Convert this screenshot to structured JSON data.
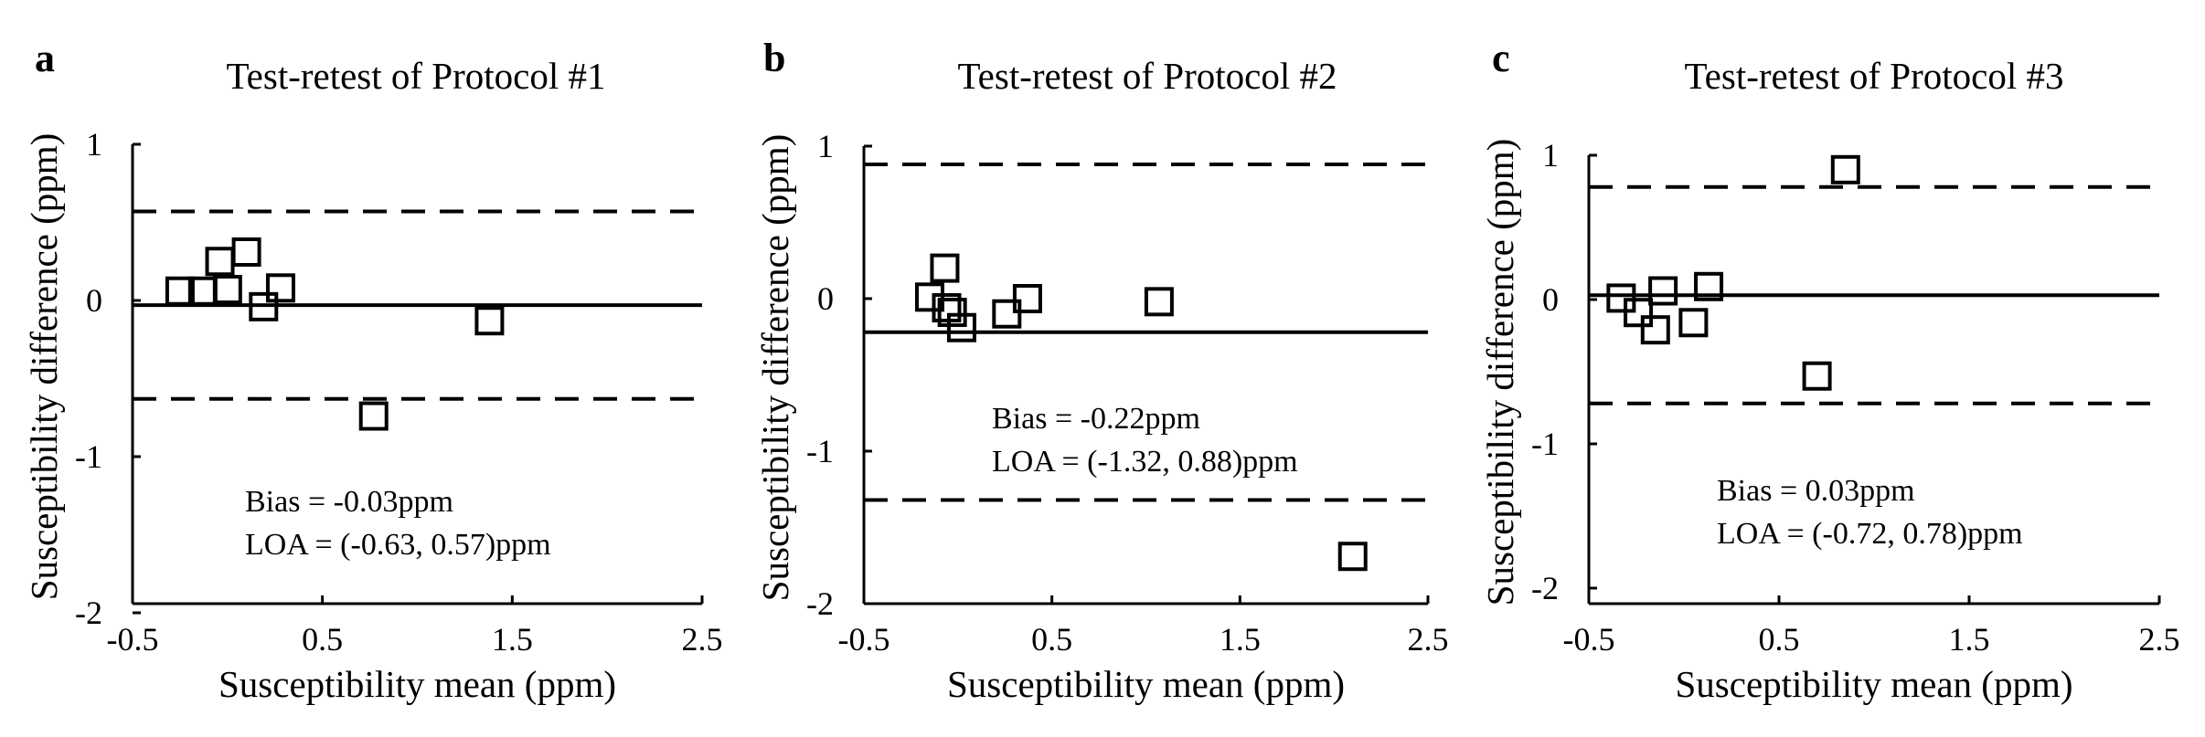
{
  "chart_data": [
    {
      "panel": "a",
      "type": "scatter",
      "title": "Test-retest of Protocol #1",
      "xlabel": "Susceptibility mean (ppm)",
      "ylabel": "Susceptibility difference (ppm)",
      "xlim": [
        -0.5,
        2.5
      ],
      "ylim": [
        -2,
        1
      ],
      "xticks": [
        -0.5,
        0.5,
        1.5,
        2.5
      ],
      "xtick_labels": [
        "-0.5",
        "0.5",
        "1.5",
        "2.5"
      ],
      "yticks": [
        -2,
        -1,
        0,
        1
      ],
      "ytick_labels": [
        "-2",
        "-1",
        "0",
        "1"
      ],
      "points": [
        {
          "x": -0.25,
          "y": 0.06
        },
        {
          "x": -0.13,
          "y": 0.06
        },
        {
          "x": -0.04,
          "y": 0.25
        },
        {
          "x": 0.0,
          "y": 0.07
        },
        {
          "x": 0.1,
          "y": 0.31
        },
        {
          "x": 0.19,
          "y": -0.04
        },
        {
          "x": 0.28,
          "y": 0.08
        },
        {
          "x": 0.77,
          "y": -0.74
        },
        {
          "x": 1.38,
          "y": -0.13
        }
      ],
      "bias": -0.03,
      "loa": [
        -0.63,
        0.57
      ],
      "annotation": {
        "bias_text": "Bias = -0.03ppm",
        "loa_text": "LOA = (-0.63, 0.57)ppm"
      }
    },
    {
      "panel": "b",
      "type": "scatter",
      "title": "Test-retest of Protocol #2",
      "xlabel": "Susceptibility mean (ppm)",
      "ylabel": "Susceptibility difference (ppm)",
      "xlim": [
        -0.5,
        2.5
      ],
      "ylim": [
        -2,
        1
      ],
      "xticks": [
        -0.5,
        0.5,
        1.5,
        2.5
      ],
      "xtick_labels": [
        "-0.5",
        "0.5",
        "1.5",
        "2.5"
      ],
      "yticks": [
        -2,
        -1,
        0,
        1
      ],
      "ytick_labels": [
        "-2",
        "-1",
        "0",
        "1"
      ],
      "points": [
        {
          "x": -0.15,
          "y": 0.01
        },
        {
          "x": -0.07,
          "y": 0.2
        },
        {
          "x": -0.06,
          "y": -0.06
        },
        {
          "x": -0.03,
          "y": -0.09
        },
        {
          "x": 0.02,
          "y": -0.19
        },
        {
          "x": 0.26,
          "y": -0.1
        },
        {
          "x": 0.37,
          "y": 0.0
        },
        {
          "x": 1.07,
          "y": -0.02
        },
        {
          "x": 2.1,
          "y": -1.69
        }
      ],
      "bias": -0.22,
      "loa": [
        -1.32,
        0.88
      ],
      "annotation": {
        "bias_text": "Bias = -0.22ppm",
        "loa_text": "LOA = (-1.32, 0.88)ppm"
      }
    },
    {
      "panel": "c",
      "type": "scatter",
      "title": "Test-retest of Protocol #3",
      "xlabel": "Susceptibility mean (ppm)",
      "ylabel": "Susceptibility difference (ppm)",
      "xlim": [
        -0.5,
        2.5
      ],
      "ylim": [
        -2,
        1
      ],
      "xticks": [
        -0.5,
        0.5,
        1.5,
        2.5
      ],
      "xtick_labels": [
        "-0.5",
        "0.5",
        "1.5",
        "2.5"
      ],
      "yticks": [
        -2,
        -1,
        0,
        1
      ],
      "ytick_labels": [
        "-2",
        "-1",
        "0",
        "1"
      ],
      "points": [
        {
          "x": -0.33,
          "y": 0.01
        },
        {
          "x": -0.24,
          "y": -0.09
        },
        {
          "x": -0.15,
          "y": -0.21
        },
        {
          "x": -0.11,
          "y": 0.06
        },
        {
          "x": 0.05,
          "y": -0.16
        },
        {
          "x": 0.13,
          "y": 0.09
        },
        {
          "x": 0.7,
          "y": -0.53
        },
        {
          "x": 0.85,
          "y": 0.9
        }
      ],
      "bias": 0.03,
      "loa": [
        -0.72,
        0.78
      ],
      "annotation": {
        "bias_text": "Bias = 0.03ppm",
        "loa_text": "LOA = (-0.72, 0.78)ppm"
      }
    }
  ]
}
